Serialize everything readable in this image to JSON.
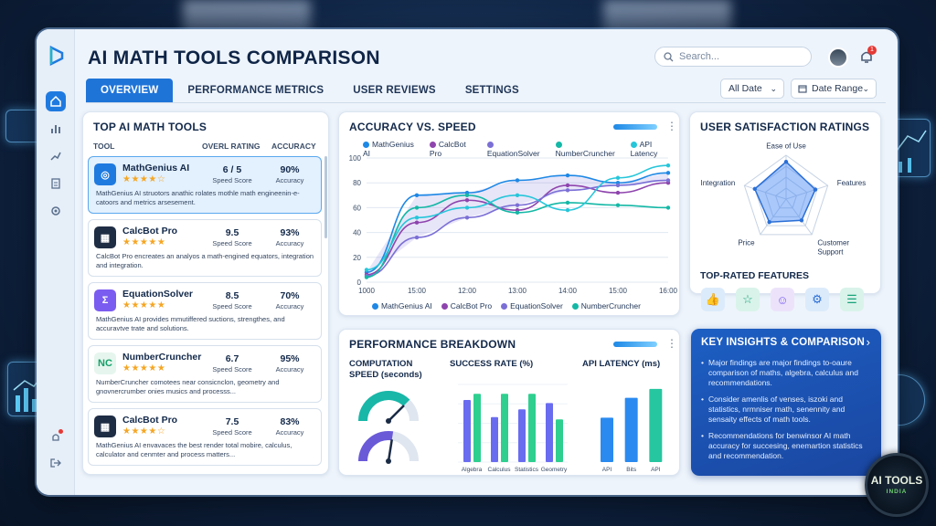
{
  "app": {
    "title": "AI MATH TOOLS COMPARISON"
  },
  "search": {
    "placeholder": "Search..."
  },
  "notifications": {
    "count": "1"
  },
  "tabs": [
    {
      "label": "OVERVIEW"
    },
    {
      "label": "PERFORMANCE METRICS"
    },
    {
      "label": "USER REVIEWS"
    },
    {
      "label": "SETTINGS"
    }
  ],
  "filters": {
    "date": "All Date",
    "range": "Date Range"
  },
  "top_tools": {
    "title": "TOP AI MATH TOOLS",
    "headers": {
      "tool": "TOOL",
      "rating": "OVERL RATING",
      "accuracy": "ACCURACY"
    },
    "items": [
      {
        "name": "MathGenius AI",
        "stars": "★★★★☆",
        "score": "6 / 5",
        "score_label": "Speed Score",
        "accuracy": "90%",
        "accuracy_label": "Accuracy",
        "desc": "MathGenius AI struotors anathic rolates mothle math engineenin-e-catoors and metrics arsesement.",
        "icon": "brain-icon"
      },
      {
        "name": "CalcBot Pro",
        "stars": "★★★★★",
        "score": "9.5",
        "score_label": "Speed Score",
        "accuracy": "93%",
        "accuracy_label": "Accuracy",
        "desc": "CalcBot Pro encreates an analyos a math-engined equators, integration and integration.",
        "icon": "calculator-icon"
      },
      {
        "name": "EquationSolver",
        "stars": "★★★★★",
        "score": "8.5",
        "score_label": "Speed Score",
        "accuracy": "70%",
        "accuracy_label": "Accuracy",
        "desc": "MathGenius AI provides mmutiffered suctions, strengthes, and accuravtve trate and solutions.",
        "icon": "sigma-icon"
      },
      {
        "name": "NumberCruncher",
        "stars": "★★★★★",
        "score": "6.7",
        "score_label": "Speed Score",
        "accuracy": "95%",
        "accuracy_label": "Accuracy",
        "desc": "NumberCruncher comotees near consicnclon, geometry and gnovnercrumber onies musics and processs...",
        "icon": "nc-icon",
        "icon_text": "NC"
      },
      {
        "name": "CalcBot Pro",
        "stars": "★★★★☆",
        "score": "7.5",
        "score_label": "Speed Score",
        "accuracy": "83%",
        "accuracy_label": "Accuracy",
        "desc": "MathGenius AI envavaces the best render total mobire, calculus, calculator and cenmter and process matters...",
        "icon": "calculator-icon"
      }
    ]
  },
  "accuracy_speed": {
    "title": "ACCURACY VS. SPEED"
  },
  "chart_data": {
    "type": "line",
    "title": "ACCURACY VS. SPEED",
    "x": [
      "1000",
      "15:00",
      "12:00",
      "13:00",
      "14:00",
      "15:00",
      "16:00"
    ],
    "ylim": [
      0,
      100
    ],
    "yticks": [
      0,
      20,
      40,
      60,
      80,
      100
    ],
    "top_legend": [
      "MathGenius AI",
      "CalcBot Pro",
      "EquationSolver",
      "NumberCruncher",
      "API Latency"
    ],
    "bottom_legend": [
      "MathGenius AI",
      "CalcBot Pro",
      "EquationSolver",
      "NumberCruncher"
    ],
    "series": [
      {
        "name": "MathGenius AI",
        "color": "#1e88e5",
        "values": [
          8,
          70,
          72,
          82,
          86,
          80,
          88
        ]
      },
      {
        "name": "CalcBot Pro",
        "color": "#8e44ad",
        "values": [
          6,
          48,
          66,
          58,
          78,
          72,
          80
        ]
      },
      {
        "name": "EquationSolver",
        "color": "#7b6fd6",
        "values": [
          5,
          36,
          52,
          62,
          74,
          78,
          82
        ]
      },
      {
        "name": "NumberCruncher",
        "color": "#14b8a6",
        "values": [
          4,
          60,
          70,
          56,
          64,
          62,
          60
        ]
      },
      {
        "name": "API Latency",
        "color": "#26c6da",
        "values": [
          10,
          52,
          60,
          70,
          58,
          84,
          94
        ]
      }
    ]
  },
  "satisfaction": {
    "title": "USER SATISFACTION RATINGS",
    "axes": [
      "Ease of Use",
      "Features",
      "Customer Support",
      "Price",
      "Integration"
    ],
    "values": [
      0.85,
      0.7,
      0.6,
      0.65,
      0.75
    ],
    "features_title": "TOP-RATED FEATURES",
    "features": [
      "thumbs-up-icon",
      "star-icon",
      "users-icon",
      "settings-icon",
      "chat-icon"
    ]
  },
  "performance": {
    "title": "PERFORMANCE BREAKDOWN",
    "computation_title": "COMPUTATION SPEED (seconds)",
    "gauges": [
      0.75,
      0.55
    ],
    "success_title": "SUCCESS RATE (%)",
    "success_categories": [
      "Algebra",
      "Calculus",
      "Statistics",
      "Geometry"
    ],
    "success_values": [
      [
        80,
        88
      ],
      [
        58,
        88
      ],
      [
        68,
        88
      ],
      [
        76,
        55
      ]
    ],
    "latency_title": "API LATENCY (ms)",
    "latency_categories": [
      "API",
      "Bits",
      "API"
    ],
    "latency_values": [
      40,
      58,
      66
    ]
  },
  "insights": {
    "title": "KEY INSIGHTS & COMPARISON",
    "bullets": [
      "Major findings are major findings to-oaure comparison of maths, algebra, calculus and recommendations.",
      "Consider amenlis of venses, iszoki and statistics, nrmniser math, senennity and sensaity effects of math tools.",
      "Recommendations for benwinsor AI math accuracy for succesing, enemartion statistics and recommendation."
    ]
  },
  "brand": {
    "line1": "AI TOOLS",
    "line2": "INDIA"
  }
}
